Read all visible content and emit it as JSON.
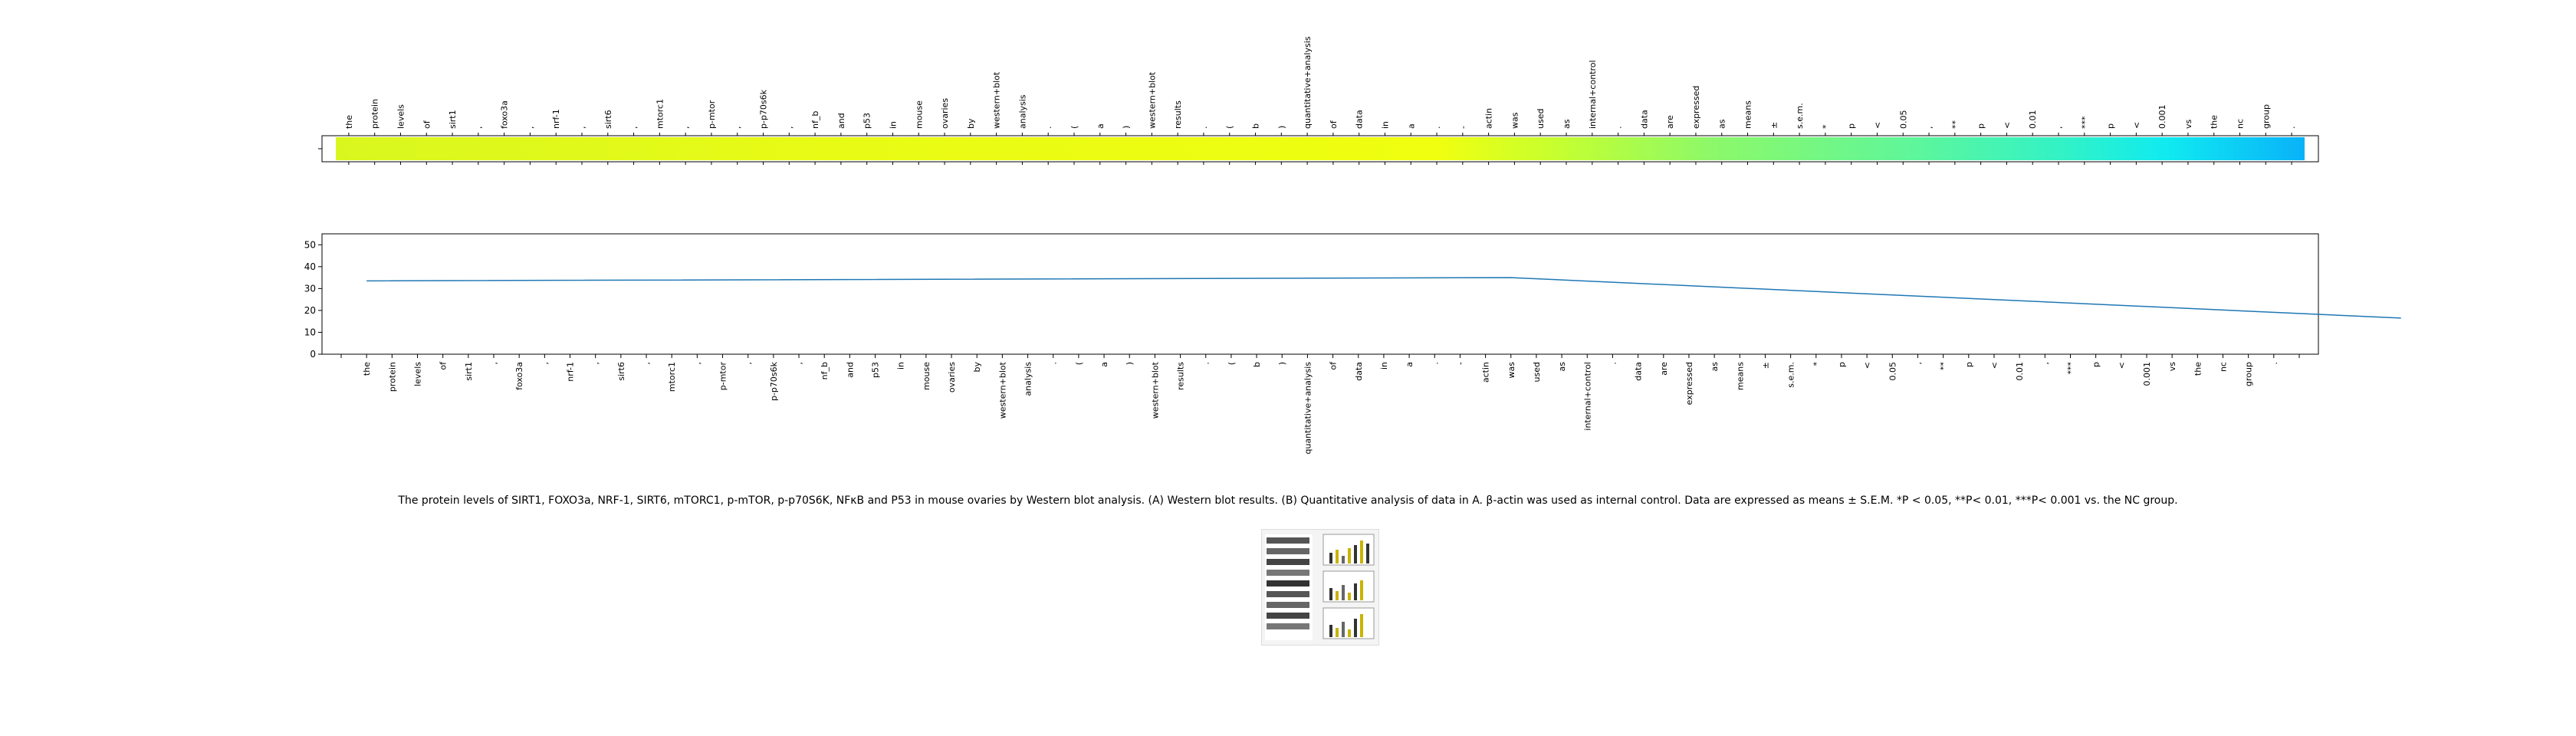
{
  "chart_data": [
    {
      "type": "heatmap",
      "tokens": [
        "the",
        "protein",
        "levels",
        "of",
        "sirt1",
        ",",
        "foxo3a",
        ",",
        "nrf-1",
        ",",
        "sirt6",
        ",",
        "mtorc1",
        ",",
        "p-mtor",
        ",",
        "p-p70s6k",
        ",",
        "nf_b",
        "and",
        "p53",
        "in",
        "mouse",
        "ovaries",
        "by",
        "western+blot",
        "analysis",
        ".",
        "(",
        "a",
        ")",
        "western+blot",
        "results",
        ".",
        "(",
        "b",
        ")",
        "quantitative+analysis",
        "of",
        "data",
        "in",
        "a",
        ".",
        "-",
        "actin",
        "was",
        "used",
        "as",
        "internal+control",
        ".",
        "data",
        "are",
        "expressed",
        "as",
        "means",
        "±",
        "s.e.m.",
        "*",
        "p",
        "<",
        "0.05",
        ",",
        "**",
        "p",
        "<",
        "0.01",
        ",",
        "***",
        "p",
        "<",
        "0.001",
        "vs",
        "the",
        "nc",
        "group",
        "."
      ],
      "colormap": [
        "#d9f71f",
        "#e8fb15",
        "#f0ff10",
        "#c6ff2f",
        "#8cf86a",
        "#5ff69a",
        "#30f2c8",
        "#10eaf0",
        "#09b2f9"
      ],
      "colormap_stops": [
        0,
        0.25,
        0.56,
        0.62,
        0.7,
        0.8,
        0.88,
        0.93,
        1
      ]
    },
    {
      "type": "line",
      "x_tick_labels": [
        "",
        "the",
        "protein",
        "levels",
        "of",
        "sirt1",
        ",",
        "foxo3a",
        ",",
        "nrf-1",
        ",",
        "sirt6",
        ",",
        "mtorc1",
        ",",
        "p-mtor",
        ",",
        "p-p70s6k",
        ",",
        "nf_b",
        "and",
        "p53",
        "in",
        "mouse",
        "ovaries",
        "by",
        "western+blot",
        "analysis",
        ".",
        "(",
        "a",
        ")",
        "western+blot",
        "results",
        ".",
        "(",
        "b",
        ")",
        "quantitative+analysis",
        "of",
        "data",
        "in",
        "a",
        ".",
        "-",
        "actin",
        "was",
        "used",
        "as",
        "internal+control",
        ".",
        "data",
        "are",
        "expressed",
        "as",
        "means",
        "±",
        "s.e.m.",
        "*",
        "p",
        "<",
        "0.05",
        ",",
        "**",
        "p",
        "<",
        "0.01",
        ",",
        "***",
        "p",
        "<",
        "0.001",
        "vs",
        "the",
        "nc",
        "group",
        ".",
        ""
      ],
      "x": [
        1,
        46,
        81
      ],
      "y": [
        33.5,
        35,
        16.5
      ],
      "ylim": [
        0,
        55
      ],
      "y_ticks": [
        0,
        10,
        20,
        30,
        40,
        50
      ],
      "series_color": "#1f77b4"
    }
  ],
  "caption": "The protein levels of SIRT1, FOXO3a, NRF-1, SIRT6, mTORC1, p-mTOR, p-p70S6K, NFκB and P53 in mouse ovaries by Western blot analysis. (A) Western blot results. (B) Quantitative analysis of data in A. β-actin was used as internal control. Data are expressed as means ± S.E.M. *P < 0.05, **P< 0.01, ***P< 0.001 vs. the NC group."
}
